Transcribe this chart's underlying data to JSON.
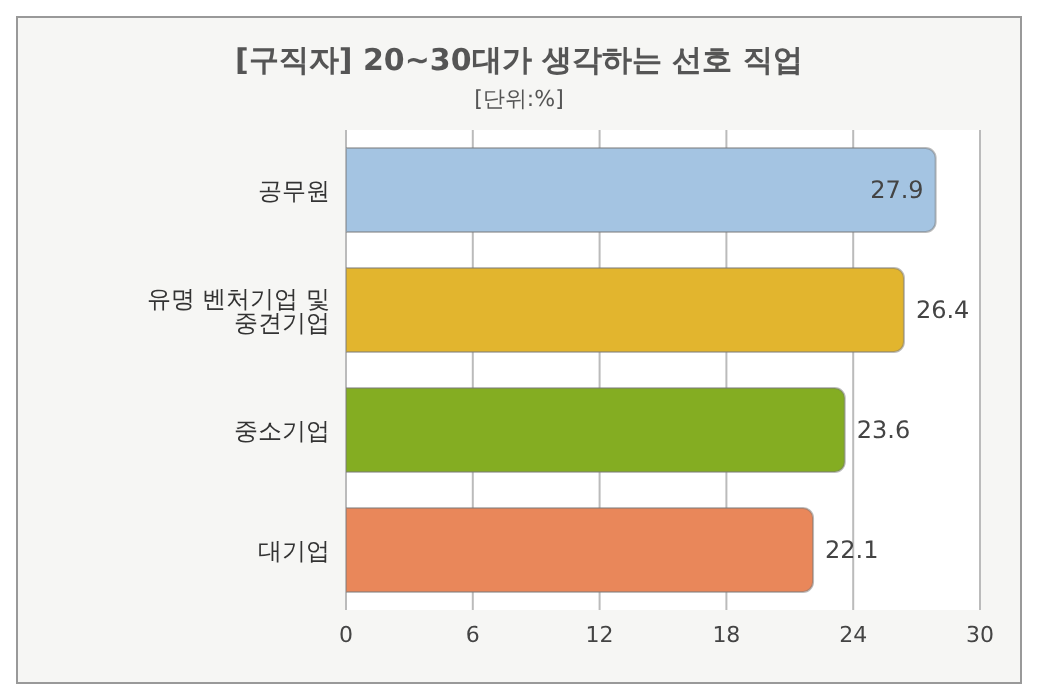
{
  "chart_data": {
    "type": "bar",
    "orientation": "horizontal",
    "title": "[구직자] 20~30대가 생각하는 선호 직업",
    "subtitle": "[단위:%]",
    "categories": [
      "공무원",
      "유명 벤처기업 및 중견기업",
      "중소기업",
      "대기업"
    ],
    "values": [
      27.9,
      26.4,
      23.6,
      22.1
    ],
    "colors": [
      "#a4c4e2",
      "#e2b52e",
      "#84ad22",
      "#e9875a"
    ],
    "xlim": [
      0,
      30
    ],
    "xticks": [
      0,
      6,
      12,
      18,
      24,
      30
    ],
    "grid": "x",
    "data_labels": true
  }
}
